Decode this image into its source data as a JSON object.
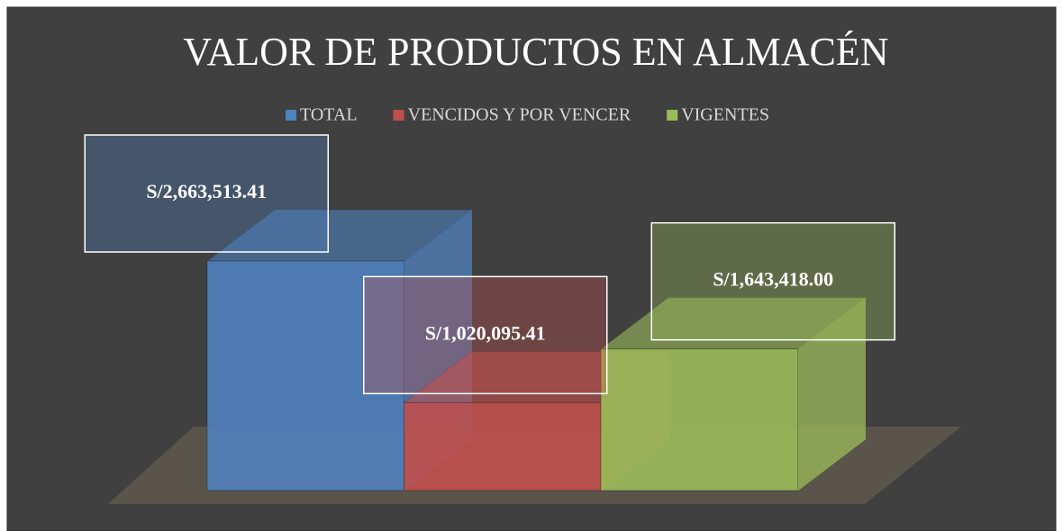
{
  "chart_data": {
    "type": "bar",
    "title": "VALOR DE PRODUCTOS EN ALMACÉN",
    "series": [
      {
        "name": "TOTAL",
        "color": "#4f81bd",
        "values": [
          2663513.41
        ],
        "value_labels": [
          "S/2,663,513.41"
        ]
      },
      {
        "name": "VENCIDOS Y POR VENCER",
        "color": "#c0504d",
        "values": [
          1020095.41
        ],
        "value_labels": [
          "S/1,020,095.41"
        ]
      },
      {
        "name": "VIGENTES",
        "color": "#9bbb59",
        "values": [
          1643418.0
        ],
        "value_labels": [
          "S/1,643,418.00"
        ]
      }
    ]
  }
}
